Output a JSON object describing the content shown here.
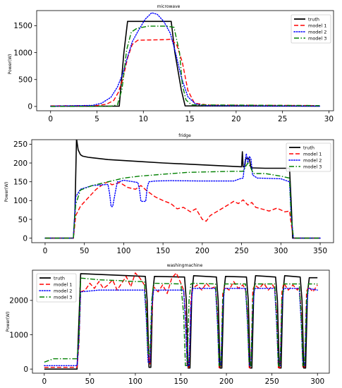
{
  "colors": {
    "truth": "#000000",
    "model 1": "#ff0000",
    "model 2": "#0000ff",
    "model 3": "#008000"
  },
  "chart_data": [
    {
      "type": "line",
      "title": "microwave",
      "xlabel": "",
      "ylabel": "Power(W)",
      "xlim": [
        -1.5,
        30.5
      ],
      "ylim": [
        -80,
        1780
      ],
      "xticks": [
        0,
        5,
        10,
        15,
        20,
        25,
        30
      ],
      "yticks": [
        0,
        500,
        1000,
        1500
      ],
      "legend": "top-right",
      "grid": false,
      "series": [
        {
          "name": "truth",
          "style": "solid",
          "x": [
            0,
            7.4,
            7.9,
            8.3,
            13.0,
            13.4,
            14.1,
            14.5,
            29
          ],
          "y": [
            5,
            5,
            1000,
            1580,
            1580,
            1000,
            300,
            10,
            5
          ]
        },
        {
          "name": "model 1",
          "style": "dashed",
          "x": [
            0,
            5,
            6,
            6.8,
            7.3,
            7.8,
            8.3,
            8.8,
            9.4,
            12.4,
            13,
            13.6,
            14.2,
            14.8,
            15.5,
            17,
            29
          ],
          "y": [
            10,
            15,
            40,
            110,
            260,
            520,
            900,
            1150,
            1230,
            1240,
            1250,
            1140,
            820,
            300,
            60,
            25,
            15
          ]
        },
        {
          "name": "model 2",
          "style": "dotted",
          "x": [
            0,
            4.5,
            5.5,
            6.5,
            7.2,
            7.8,
            8.3,
            8.8,
            9.4,
            10.2,
            10.9,
            11.5,
            12.2,
            12.9,
            13.5,
            14.1,
            14.8,
            15.6,
            16.5,
            29
          ],
          "y": [
            5,
            20,
            60,
            170,
            360,
            620,
            920,
            1200,
            1390,
            1620,
            1740,
            1710,
            1580,
            1360,
            980,
            540,
            180,
            50,
            15,
            5
          ]
        },
        {
          "name": "model 3",
          "style": "dashdot",
          "x": [
            0,
            6.5,
            7.2,
            7.7,
            8.2,
            8.7,
            9.3,
            10.5,
            12.5,
            13.3,
            13.9,
            14.2,
            14.6,
            15.2,
            29
          ],
          "y": [
            0,
            5,
            30,
            320,
            1050,
            1380,
            1450,
            1490,
            1490,
            1470,
            1000,
            400,
            120,
            30,
            15
          ]
        }
      ]
    },
    {
      "type": "line",
      "title": "fridge",
      "xlabel": "",
      "ylabel": "Power(W)",
      "xlim": [
        -17,
        367
      ],
      "ylim": [
        -12,
        262
      ],
      "xticks": [
        0,
        50,
        100,
        150,
        200,
        250,
        300,
        350
      ],
      "yticks": [
        0,
        50,
        100,
        150,
        200,
        250
      ],
      "legend": "top-right",
      "grid": false,
      "series": [
        {
          "name": "truth",
          "style": "solid",
          "x": [
            0,
            36,
            38,
            40,
            42,
            45,
            48,
            55,
            80,
            120,
            150,
            200,
            250,
            251,
            252,
            254,
            255,
            256,
            258,
            260,
            262,
            264,
            280,
            311,
            313,
            315,
            320,
            350
          ],
          "y": [
            0,
            0,
            70,
            265,
            235,
            222,
            218,
            215,
            209,
            204,
            200,
            195,
            190,
            230,
            190,
            190,
            210,
            212,
            213,
            210,
            187,
            187,
            186,
            186,
            100,
            0,
            0,
            0
          ]
        },
        {
          "name": "model 1",
          "style": "dashed",
          "x": [
            0,
            36,
            39,
            45,
            55,
            65,
            75,
            80,
            85,
            95,
            105,
            115,
            122,
            130,
            140,
            150,
            160,
            168,
            176,
            185,
            192,
            200,
            205,
            210,
            218,
            226,
            234,
            240,
            246,
            252,
            258,
            263,
            268,
            275,
            285,
            295,
            305,
            311,
            313,
            316,
            350
          ],
          "y": [
            0,
            0,
            60,
            85,
            108,
            130,
            145,
            150,
            142,
            148,
            135,
            130,
            140,
            125,
            110,
            100,
            92,
            78,
            82,
            70,
            78,
            50,
            45,
            60,
            70,
            80,
            90,
            98,
            92,
            102,
            88,
            95,
            82,
            78,
            72,
            80,
            70,
            72,
            40,
            0,
            0
          ]
        },
        {
          "name": "model 2",
          "style": "dotted",
          "x": [
            0,
            36,
            39,
            45,
            60,
            80,
            82,
            84,
            86,
            90,
            92,
            94,
            100,
            118,
            120,
            122,
            128,
            130,
            132,
            140,
            160,
            200,
            240,
            248,
            252,
            254,
            256,
            258,
            260,
            262,
            264,
            270,
            300,
            311,
            313,
            316,
            350
          ],
          "y": [
            0,
            0,
            110,
            130,
            140,
            143,
            120,
            84,
            84,
            130,
            150,
            150,
            154,
            148,
            130,
            98,
            98,
            135,
            150,
            152,
            153,
            152,
            152,
            158,
            160,
            200,
            225,
            200,
            218,
            210,
            168,
            160,
            158,
            150,
            60,
            0,
            0
          ]
        },
        {
          "name": "model 3",
          "style": "dashdot",
          "x": [
            0,
            36,
            39,
            45,
            60,
            80,
            100,
            120,
            150,
            180,
            200,
            240,
            252,
            255,
            258,
            261,
            265,
            280,
            300,
            311,
            313,
            316,
            350
          ],
          "y": [
            0,
            0,
            90,
            128,
            140,
            150,
            160,
            165,
            170,
            175,
            176,
            178,
            178,
            190,
            200,
            190,
            172,
            172,
            165,
            160,
            60,
            0,
            0
          ]
        }
      ]
    },
    {
      "type": "line",
      "title": "washingmachine",
      "xlabel": "",
      "ylabel": "Power(W)",
      "xlim": [
        -13,
        313
      ],
      "ylim": [
        -120,
        2880
      ],
      "xticks": [
        0,
        50,
        100,
        150,
        200,
        250,
        300
      ],
      "yticks": [
        0,
        1000,
        2000
      ],
      "legend": "top-left",
      "grid": false,
      "series": [
        {
          "name": "truth",
          "style": "solid",
          "x": [
            0,
            36,
            38,
            40,
            111,
            113,
            115,
            117,
            119,
            121,
            154,
            156,
            158,
            160,
            162,
            164,
            189,
            191,
            193,
            195,
            197,
            199,
            222,
            224,
            226,
            228,
            230,
            232,
            254,
            256,
            258,
            260,
            262,
            264,
            281,
            283,
            285,
            287,
            289,
            291,
            300
          ],
          "y": [
            0,
            0,
            1400,
            2780,
            2700,
            2000,
            50,
            50,
            2200,
            2700,
            2680,
            2000,
            30,
            30,
            2200,
            2720,
            2680,
            2000,
            30,
            30,
            2200,
            2700,
            2680,
            2000,
            30,
            30,
            2200,
            2720,
            2680,
            2000,
            30,
            30,
            2200,
            2720,
            2680,
            2000,
            30,
            30,
            2200,
            2660,
            2660
          ]
        },
        {
          "name": "model 1",
          "style": "dashed",
          "x": [
            0,
            36,
            38,
            40,
            45,
            50,
            55,
            60,
            65,
            70,
            75,
            80,
            85,
            90,
            95,
            100,
            105,
            110,
            112,
            114,
            116,
            118,
            120,
            125,
            130,
            135,
            140,
            145,
            150,
            153,
            155,
            157,
            159,
            161,
            163,
            168,
            173,
            178,
            183,
            188,
            190,
            192,
            194,
            196,
            198,
            203,
            208,
            213,
            218,
            221,
            223,
            225,
            227,
            229,
            231,
            236,
            241,
            246,
            251,
            253,
            255,
            257,
            259,
            261,
            263,
            268,
            273,
            278,
            280,
            282,
            284,
            286,
            288,
            290,
            295,
            300
          ],
          "y": [
            50,
            50,
            700,
            2250,
            2300,
            2500,
            2350,
            2550,
            2350,
            2450,
            2600,
            2300,
            2500,
            2700,
            2400,
            2800,
            2650,
            2450,
            1800,
            500,
            150,
            1500,
            2400,
            2250,
            2450,
            2200,
            2650,
            2800,
            2500,
            2300,
            1600,
            50,
            50,
            2000,
            2350,
            2450,
            2300,
            2500,
            2350,
            2400,
            1700,
            40,
            40,
            2200,
            2400,
            2300,
            2550,
            2350,
            2450,
            2300,
            1700,
            40,
            40,
            2300,
            2450,
            2350,
            2500,
            2300,
            2450,
            2300,
            1700,
            40,
            40,
            2250,
            2500,
            2300,
            2450,
            2300,
            2400,
            1700,
            40,
            40,
            2250,
            2400,
            2250,
            2450
          ]
        },
        {
          "name": "model 2",
          "style": "dotted",
          "x": [
            0,
            36,
            38,
            40,
            60,
            80,
            100,
            110,
            112,
            114,
            116,
            118,
            120,
            135,
            150,
            153,
            155,
            157,
            159,
            161,
            163,
            175,
            188,
            190,
            192,
            194,
            196,
            198,
            210,
            221,
            223,
            225,
            227,
            229,
            231,
            245,
            253,
            255,
            257,
            259,
            261,
            263,
            270,
            280,
            282,
            284,
            286,
            288,
            290,
            300
          ],
          "y": [
            100,
            100,
            800,
            2250,
            2300,
            2300,
            2300,
            2300,
            1500,
            200,
            200,
            1800,
            2300,
            2300,
            2300,
            2300,
            1400,
            100,
            100,
            1800,
            2350,
            2350,
            2350,
            1400,
            100,
            100,
            1800,
            2350,
            2350,
            2350,
            1400,
            100,
            100,
            1800,
            2350,
            2350,
            2350,
            1400,
            100,
            100,
            1800,
            2350,
            2350,
            2350,
            1400,
            100,
            100,
            1800,
            2350,
            2300
          ]
        },
        {
          "name": "model 3",
          "style": "dashdot",
          "x": [
            0,
            10,
            30,
            36,
            38,
            40,
            60,
            80,
            100,
            110,
            112,
            114,
            116,
            118,
            120,
            150,
            153,
            155,
            157,
            159,
            161,
            163,
            188,
            190,
            192,
            194,
            196,
            198,
            221,
            223,
            225,
            227,
            229,
            231,
            253,
            255,
            257,
            259,
            261,
            263,
            280,
            282,
            284,
            286,
            288,
            290,
            300
          ],
          "y": [
            200,
            300,
            300,
            300,
            900,
            2650,
            2600,
            2580,
            2550,
            2550,
            1700,
            450,
            450,
            2000,
            2500,
            2480,
            1600,
            100,
            100,
            2000,
            2480,
            2500,
            2480,
            1600,
            100,
            100,
            2000,
            2480,
            2480,
            1600,
            100,
            100,
            2000,
            2480,
            2480,
            1600,
            100,
            100,
            2000,
            2480,
            2480,
            1600,
            100,
            100,
            2000,
            2480,
            2480
          ]
        }
      ]
    }
  ]
}
